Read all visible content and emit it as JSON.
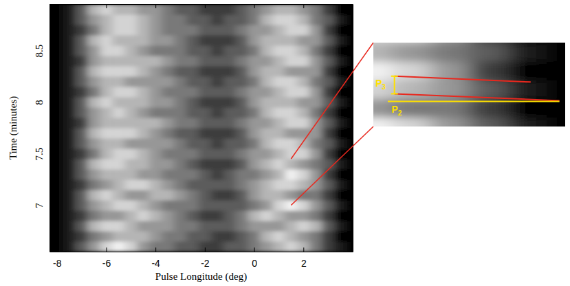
{
  "chart_data": {
    "type": "heatmap",
    "x_label": "Pulse Longitude (deg)",
    "y_label": "Time (minutes)",
    "xlim": [
      -8.3,
      4.0
    ],
    "ylim": [
      6.55,
      8.95
    ],
    "xticks": [
      -8,
      -6,
      -4,
      -2,
      0,
      2
    ],
    "yticks": [
      7,
      7.5,
      8,
      8.5
    ],
    "x": [
      -8.0,
      -7.5,
      -7.0,
      -6.5,
      -6.0,
      -5.5,
      -5.0,
      -4.5,
      -4.0,
      -3.5,
      -3.0,
      -2.5,
      -2.0,
      -1.5,
      -1.0,
      -0.5,
      0.0,
      0.5,
      1.0,
      1.5,
      2.0,
      2.5,
      3.0,
      3.5
    ],
    "y": [
      6.6,
      6.7,
      6.8,
      6.9,
      7.0,
      7.1,
      7.2,
      7.3,
      7.4,
      7.5,
      7.6,
      7.7,
      7.8,
      7.9,
      8.0,
      8.1,
      8.2,
      8.3,
      8.4,
      8.5,
      8.6,
      8.7,
      8.8,
      8.9
    ],
    "cells": [
      [
        0,
        1,
        3,
        5,
        7,
        8,
        7,
        5,
        4,
        4,
        3,
        3,
        2,
        2,
        3,
        3,
        4,
        5,
        6,
        7,
        6,
        4,
        2,
        1
      ],
      [
        0,
        1,
        2,
        4,
        5,
        6,
        6,
        6,
        5,
        4,
        4,
        3,
        3,
        2,
        2,
        3,
        4,
        6,
        7,
        6,
        5,
        4,
        2,
        0
      ],
      [
        0,
        1,
        3,
        6,
        7,
        7,
        6,
        5,
        5,
        5,
        4,
        4,
        3,
        3,
        3,
        4,
        5,
        5,
        5,
        6,
        7,
        6,
        3,
        1
      ],
      [
        0,
        1,
        2,
        4,
        5,
        5,
        6,
        7,
        6,
        5,
        4,
        3,
        2,
        2,
        3,
        4,
        6,
        7,
        6,
        5,
        5,
        4,
        2,
        0
      ],
      [
        0,
        1,
        3,
        5,
        6,
        7,
        7,
        6,
        5,
        4,
        4,
        4,
        3,
        3,
        3,
        3,
        4,
        5,
        7,
        8,
        7,
        5,
        3,
        1
      ],
      [
        0,
        1,
        3,
        6,
        7,
        6,
        5,
        5,
        6,
        6,
        5,
        4,
        3,
        2,
        2,
        3,
        5,
        6,
        6,
        5,
        4,
        4,
        2,
        0
      ],
      [
        0,
        1,
        2,
        4,
        5,
        6,
        7,
        7,
        6,
        5,
        4,
        3,
        3,
        3,
        3,
        4,
        5,
        6,
        7,
        7,
        6,
        5,
        3,
        1
      ],
      [
        0,
        1,
        3,
        5,
        6,
        6,
        6,
        5,
        5,
        4,
        4,
        4,
        3,
        2,
        3,
        4,
        4,
        5,
        6,
        8,
        7,
        5,
        2,
        0
      ],
      [
        0,
        1,
        3,
        6,
        7,
        7,
        6,
        6,
        5,
        5,
        4,
        3,
        2,
        2,
        2,
        3,
        5,
        6,
        7,
        6,
        5,
        4,
        3,
        1
      ],
      [
        0,
        1,
        2,
        4,
        6,
        7,
        7,
        6,
        5,
        4,
        4,
        4,
        3,
        3,
        3,
        4,
        5,
        5,
        6,
        7,
        7,
        5,
        2,
        0
      ],
      [
        0,
        1,
        3,
        5,
        6,
        6,
        5,
        5,
        5,
        5,
        4,
        3,
        3,
        2,
        3,
        3,
        4,
        6,
        7,
        7,
        6,
        4,
        3,
        1
      ],
      [
        0,
        1,
        3,
        6,
        7,
        7,
        7,
        6,
        5,
        4,
        3,
        3,
        2,
        2,
        2,
        3,
        5,
        6,
        6,
        5,
        5,
        5,
        2,
        0
      ],
      [
        0,
        1,
        2,
        5,
        6,
        6,
        6,
        6,
        6,
        5,
        4,
        4,
        3,
        3,
        3,
        4,
        5,
        5,
        6,
        7,
        7,
        5,
        3,
        1
      ],
      [
        0,
        1,
        3,
        5,
        6,
        7,
        6,
        5,
        4,
        4,
        4,
        3,
        3,
        2,
        3,
        3,
        4,
        6,
        7,
        7,
        6,
        4,
        2,
        0
      ],
      [
        0,
        1,
        3,
        6,
        7,
        6,
        6,
        6,
        5,
        5,
        4,
        3,
        2,
        2,
        2,
        3,
        5,
        6,
        6,
        6,
        5,
        5,
        3,
        1
      ],
      [
        0,
        1,
        2,
        4,
        6,
        7,
        7,
        6,
        5,
        4,
        4,
        4,
        3,
        3,
        3,
        4,
        5,
        5,
        6,
        7,
        7,
        5,
        2,
        0
      ],
      [
        0,
        1,
        3,
        5,
        6,
        6,
        5,
        5,
        5,
        5,
        4,
        3,
        3,
        2,
        3,
        3,
        4,
        6,
        7,
        7,
        6,
        4,
        3,
        1
      ],
      [
        0,
        1,
        3,
        6,
        7,
        7,
        7,
        6,
        5,
        4,
        3,
        3,
        2,
        2,
        2,
        3,
        5,
        6,
        6,
        5,
        5,
        5,
        2,
        0
      ],
      [
        0,
        1,
        2,
        5,
        6,
        6,
        6,
        6,
        6,
        5,
        4,
        4,
        3,
        3,
        3,
        4,
        5,
        5,
        6,
        7,
        7,
        5,
        3,
        1
      ],
      [
        0,
        1,
        3,
        5,
        7,
        7,
        6,
        5,
        4,
        4,
        4,
        3,
        3,
        2,
        3,
        3,
        4,
        6,
        7,
        7,
        6,
        4,
        2,
        0
      ],
      [
        0,
        1,
        3,
        6,
        7,
        6,
        6,
        6,
        5,
        5,
        4,
        3,
        2,
        2,
        2,
        3,
        5,
        6,
        6,
        6,
        5,
        5,
        3,
        1
      ],
      [
        0,
        1,
        2,
        4,
        6,
        7,
        7,
        6,
        5,
        4,
        4,
        4,
        3,
        3,
        3,
        4,
        5,
        5,
        6,
        7,
        7,
        5,
        2,
        0
      ],
      [
        0,
        1,
        3,
        5,
        6,
        7,
        7,
        6,
        5,
        4,
        4,
        3,
        3,
        2,
        3,
        3,
        4,
        6,
        7,
        7,
        6,
        4,
        3,
        1
      ],
      [
        0,
        1,
        3,
        6,
        7,
        6,
        6,
        5,
        5,
        4,
        3,
        3,
        2,
        2,
        2,
        3,
        4,
        5,
        6,
        6,
        5,
        4,
        2,
        0
      ]
    ],
    "inset": {
      "xlim": [
        1.5,
        4.0
      ],
      "ylim": [
        7.0,
        7.45
      ],
      "annotations": [
        "P3",
        "P2"
      ]
    }
  }
}
